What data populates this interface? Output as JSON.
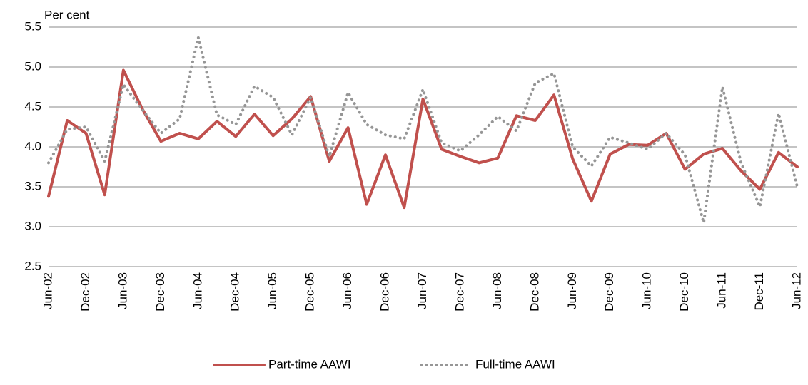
{
  "chart_data": {
    "type": "line",
    "y_axis_label": "Per cent",
    "categories": [
      "Jun-02",
      null,
      "Dec-02",
      null,
      "Jun-03",
      null,
      "Dec-03",
      null,
      "Jun-04",
      null,
      "Dec-04",
      null,
      "Jun-05",
      null,
      "Dec-05",
      null,
      "Jun-06",
      null,
      "Dec-06",
      null,
      "Jun-07",
      null,
      "Dec-07",
      null,
      "Jun-08",
      null,
      "Dec-08",
      null,
      "Jun-09",
      null,
      "Dec-09",
      null,
      "Jun-10",
      null,
      "Dec-10",
      null,
      "Jun-11",
      null,
      "Dec-11",
      null,
      "Jun-12"
    ],
    "series": [
      {
        "name": "Part-time AAWI",
        "color": "#c0504d",
        "style": "solid",
        "values": [
          3.38,
          4.33,
          4.17,
          3.4,
          4.96,
          4.48,
          4.07,
          4.17,
          4.1,
          4.32,
          4.13,
          4.41,
          4.14,
          4.35,
          4.63,
          3.82,
          4.24,
          3.28,
          3.9,
          3.24,
          4.6,
          3.97,
          3.88,
          3.8,
          3.86,
          4.39,
          4.33,
          4.65,
          3.85,
          3.32,
          3.91,
          4.03,
          4.02,
          4.17,
          3.72,
          3.91,
          3.98,
          3.7,
          3.47,
          3.93,
          3.75
        ]
      },
      {
        "name": "Full-time AAWI",
        "color": "#969696",
        "style": "dotted",
        "values": [
          3.8,
          4.22,
          4.25,
          3.82,
          4.78,
          4.47,
          4.17,
          4.35,
          5.37,
          4.4,
          4.28,
          4.76,
          4.62,
          4.15,
          4.62,
          3.88,
          4.68,
          4.28,
          4.15,
          4.1,
          4.72,
          4.05,
          3.95,
          4.15,
          4.38,
          4.2,
          4.8,
          4.92,
          4.0,
          3.76,
          4.12,
          4.05,
          3.97,
          4.17,
          3.9,
          3.05,
          4.75,
          3.8,
          3.25,
          4.42,
          3.5
        ]
      }
    ],
    "ylim": [
      2.5,
      5.5
    ],
    "yticks": [
      2.5,
      {
        "value": 3,
        "label": "3.0"
      },
      3.5,
      {
        "value": 4,
        "label": "4.0"
      },
      4.5,
      {
        "value": 5,
        "label": "5.0"
      },
      5.5
    ],
    "grid": true,
    "legend": "bottom"
  }
}
